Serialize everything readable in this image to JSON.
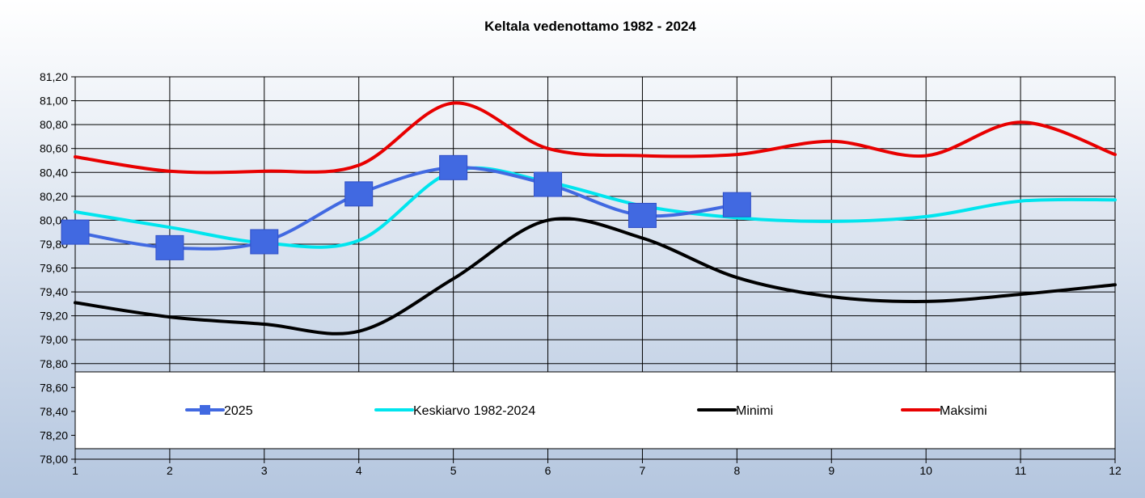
{
  "chart_data": {
    "type": "line",
    "title": "Keltala vedenottamo 1982 - 2024",
    "xlabel": "",
    "ylabel": "",
    "x": [
      1,
      2,
      3,
      4,
      5,
      6,
      7,
      8,
      9,
      10,
      11,
      12
    ],
    "x_tick_labels": [
      "1",
      "2",
      "3",
      "4",
      "5",
      "6",
      "7",
      "8",
      "9",
      "10",
      "11",
      "12"
    ],
    "ylim": [
      78.0,
      81.2
    ],
    "y_tick_labels": [
      "78,00",
      "78,20",
      "78,40",
      "78,60",
      "78,80",
      "79,00",
      "79,20",
      "79,40",
      "79,60",
      "79,80",
      "80,00",
      "80,20",
      "80,40",
      "80,60",
      "80,80",
      "81,00",
      "81,20"
    ],
    "grid": true,
    "legend_position": "bottom-inside",
    "series": [
      {
        "name": "2025",
        "color": "#4169e1",
        "marker": "square",
        "values": [
          79.9,
          79.77,
          79.82,
          80.22,
          80.44,
          80.3,
          80.04,
          80.13,
          null,
          null,
          null,
          null
        ]
      },
      {
        "name": "Keskiarvo 1982-2024",
        "color": "#00e5ee",
        "marker": "none",
        "values": [
          80.07,
          79.94,
          79.81,
          79.83,
          80.41,
          80.32,
          80.12,
          80.02,
          79.99,
          80.03,
          80.16,
          80.17
        ]
      },
      {
        "name": "Minimi",
        "color": "#000000",
        "marker": "none",
        "values": [
          79.31,
          79.19,
          79.13,
          79.07,
          79.51,
          80.0,
          79.85,
          79.52,
          79.36,
          79.32,
          79.38,
          79.46
        ]
      },
      {
        "name": "Maksimi",
        "color": "#e80000",
        "marker": "none",
        "values": [
          80.53,
          80.41,
          80.41,
          80.46,
          80.98,
          80.6,
          80.54,
          80.55,
          80.66,
          80.54,
          80.82,
          80.55
        ]
      }
    ]
  }
}
